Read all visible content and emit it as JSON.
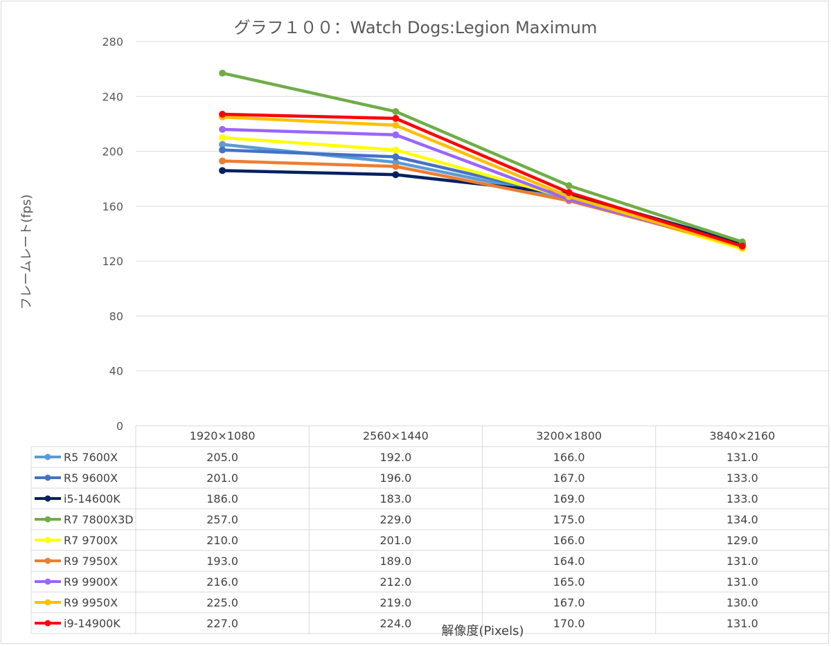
{
  "chart_data": {
    "type": "line",
    "title": "グラフ１００：Watch Dogs:Legion Maximum",
    "xlabel": "解像度(Pixels)",
    "ylabel": "フレームレート(fps)",
    "ylim": [
      0,
      280
    ],
    "yticks": [
      "0",
      "40",
      "80",
      "120",
      "160",
      "200",
      "240",
      "280"
    ],
    "grid": true,
    "legend": "data-table",
    "categories": [
      "1920×1080",
      "2560×1440",
      "3200×1800",
      "3840×2160"
    ],
    "series": [
      {
        "name": "R5 7600X",
        "color": "#5b9bd5",
        "values": [
          205.0,
          192.0,
          166.0,
          131.0
        ],
        "labels": [
          "205.0",
          "192.0",
          "166.0",
          "131.0"
        ]
      },
      {
        "name": "R5 9600X",
        "color": "#4472c4",
        "values": [
          201.0,
          196.0,
          167.0,
          133.0
        ],
        "labels": [
          "201.0",
          "196.0",
          "167.0",
          "133.0"
        ]
      },
      {
        "name": "i5-14600K",
        "color": "#002060",
        "values": [
          186.0,
          183.0,
          169.0,
          133.0
        ],
        "labels": [
          "186.0",
          "183.0",
          "169.0",
          "133.0"
        ]
      },
      {
        "name": "R7 7800X3D",
        "color": "#70ad47",
        "values": [
          257.0,
          229.0,
          175.0,
          134.0
        ],
        "labels": [
          "257.0",
          "229.0",
          "175.0",
          "134.0"
        ]
      },
      {
        "name": "R7 9700X",
        "color": "#ffff00",
        "values": [
          210.0,
          201.0,
          166.0,
          129.0
        ],
        "labels": [
          "210.0",
          "201.0",
          "166.0",
          "129.0"
        ]
      },
      {
        "name": "R9 7950X",
        "color": "#ed7d31",
        "values": [
          193.0,
          189.0,
          164.0,
          131.0
        ],
        "labels": [
          "193.0",
          "189.0",
          "164.0",
          "131.0"
        ]
      },
      {
        "name": "R9 9900X",
        "color": "#9966ff",
        "values": [
          216.0,
          212.0,
          165.0,
          131.0
        ],
        "labels": [
          "216.0",
          "212.0",
          "165.0",
          "131.0"
        ]
      },
      {
        "name": "R9 9950X",
        "color": "#ffc000",
        "values": [
          225.0,
          219.0,
          167.0,
          130.0
        ],
        "labels": [
          "225.0",
          "219.0",
          "167.0",
          "130.0"
        ]
      },
      {
        "name": "i9-14900K",
        "color": "#ff0000",
        "values": [
          227.0,
          224.0,
          170.0,
          131.0
        ],
        "labels": [
          "227.0",
          "224.0",
          "170.0",
          "131.0"
        ]
      }
    ]
  }
}
